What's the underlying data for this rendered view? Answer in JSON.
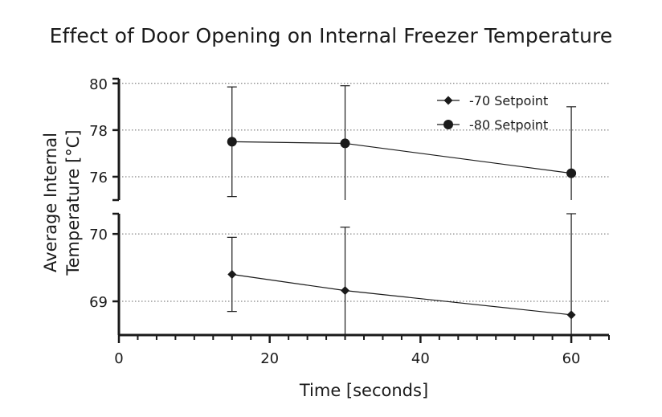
{
  "chart_data": {
    "type": "line",
    "title": "Effect of Door Opening on Internal Freezer Temperature",
    "xlabel": "Time [seconds]",
    "ylabel_lines": [
      "Average Internal",
      "Temperature [°C]"
    ],
    "xlim": [
      0,
      65
    ],
    "x_ticks": [
      0,
      20,
      40,
      60
    ],
    "y_axis_break": true,
    "y_segments": [
      {
        "name": "lower",
        "ylim": [
          68.5,
          70.3
        ],
        "ticks": [
          69,
          70
        ]
      },
      {
        "name": "upper",
        "ylim": [
          75,
          80.2
        ],
        "ticks": [
          76,
          78,
          80
        ]
      }
    ],
    "grid": "dotted horizontal at y ticks",
    "legend_position": "top-right",
    "series": [
      {
        "name": "-70 Setpoint",
        "marker": "diamond",
        "x": [
          15,
          30,
          60
        ],
        "y": [
          69.4,
          69.16,
          68.8
        ],
        "err_low": [
          68.85,
          68.5,
          68.5
        ],
        "err_high": [
          69.95,
          70.1,
          70.37
        ]
      },
      {
        "name": "-80 Setpoint",
        "marker": "circle",
        "x": [
          15,
          30,
          60
        ],
        "y": [
          77.5,
          77.43,
          76.15
        ],
        "err_low": [
          75.15,
          75.0,
          75.0
        ],
        "err_high": [
          79.85,
          79.9,
          79.0
        ]
      }
    ]
  },
  "colors": {
    "line": "#1a1a1a",
    "grid": "#666666",
    "background": "#ffffff"
  }
}
